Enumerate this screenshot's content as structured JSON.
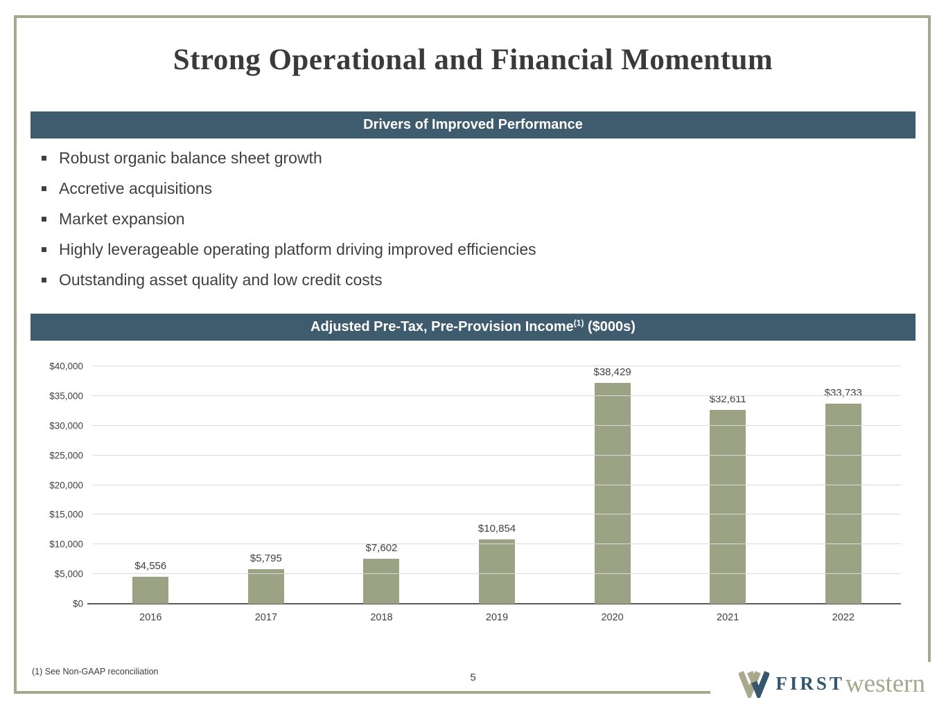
{
  "slide": {
    "title": "Strong Operational and Financial Momentum",
    "page_number": "5",
    "footnote": "(1)  See Non-GAAP reconciliation"
  },
  "drivers": {
    "header": "Drivers of Improved Performance",
    "items": [
      "Robust organic balance sheet growth",
      "Accretive acquisitions",
      "Market expansion",
      "Highly leverageable operating platform driving improved efficiencies",
      "Outstanding asset quality and low credit costs"
    ]
  },
  "chart_header": {
    "text_before_sup": "Adjusted Pre-Tax, Pre-Provision Income",
    "superscript": "(1)",
    "text_after_sup": " ($000s)"
  },
  "chart_data": {
    "type": "bar",
    "title": "Adjusted Pre-Tax, Pre-Provision Income ($000s)",
    "categories": [
      "2016",
      "2017",
      "2018",
      "2019",
      "2020",
      "2021",
      "2022"
    ],
    "values": [
      4556,
      5795,
      7602,
      10854,
      38429,
      32611,
      33733
    ],
    "value_labels": [
      "$4,556",
      "$5,795",
      "$7,602",
      "$10,854",
      "$38,429",
      "$32,611",
      "$33,733"
    ],
    "y_ticks": [
      "$0",
      "$5,000",
      "$10,000",
      "$15,000",
      "$20,000",
      "$25,000",
      "$30,000",
      "$35,000",
      "$40,000"
    ],
    "ylim": [
      0,
      40000
    ],
    "grid": true,
    "legend": "none",
    "xlabel": "",
    "ylabel": "",
    "bar_color": "#9CA284"
  },
  "logo": {
    "first": "FIRST",
    "western": "western"
  },
  "colors": {
    "banner_bg": "#3E5C6D",
    "banner_text": "#FFFFFF",
    "bar": "#9CA284",
    "frame_border": "#A4A98E",
    "title_text": "#3A3A3A",
    "body_text": "#404040",
    "gridline": "#D9D9D9",
    "axis_line": "#595959",
    "logo_first": "#31566E",
    "logo_western": "#A5A88B"
  }
}
